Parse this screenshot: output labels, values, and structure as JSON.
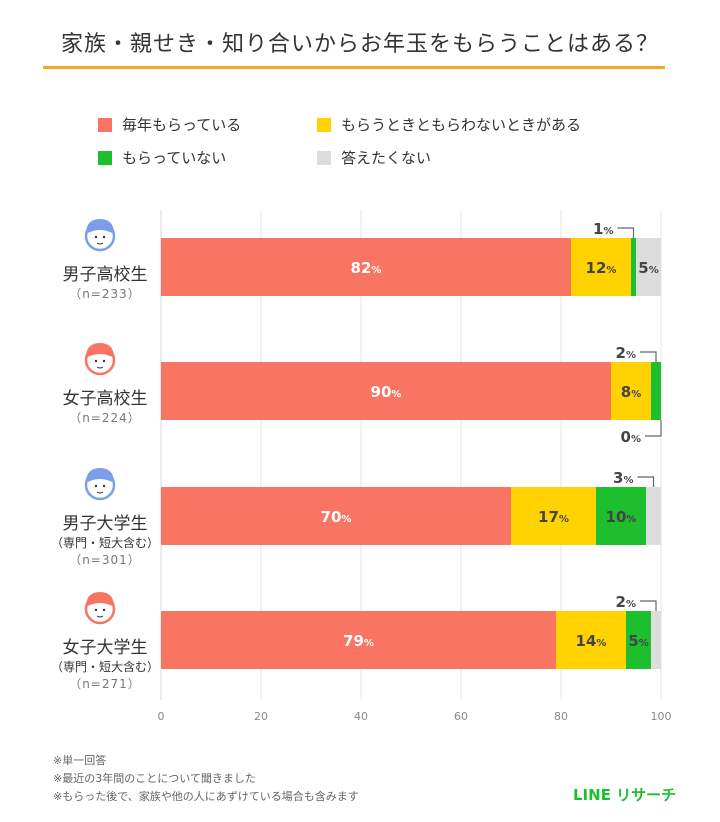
{
  "chart_data": {
    "type": "bar",
    "orientation": "horizontal",
    "stacked": true,
    "title": "家族・親せき・知り合いからお年玉をもらうことはある？",
    "categories": [
      {
        "name": "男子高校生",
        "sub": "",
        "n": "（n=233）"
      },
      {
        "name": "女子高校生",
        "sub": "",
        "n": "（n=224）"
      },
      {
        "name": "男子大学生",
        "sub": "（専門・短大含む）",
        "n": "（n=301）"
      },
      {
        "name": "女子大学生",
        "sub": "（専門・短大含む）",
        "n": "（n=271）"
      }
    ],
    "series": [
      {
        "name": "毎年もらっている",
        "color": "#F87564",
        "values": [
          82,
          90,
          70,
          79
        ]
      },
      {
        "name": "もらうときともらわないときがある",
        "color": "#FFD200",
        "values": [
          12,
          8,
          17,
          14
        ]
      },
      {
        "name": "もらっていない",
        "color": "#1DBF2E",
        "values": [
          1,
          2,
          10,
          5
        ]
      },
      {
        "name": "答えたくない",
        "color": "#DDDDDD",
        "values": [
          5,
          0,
          3,
          2
        ]
      }
    ],
    "xlim": [
      0,
      100
    ],
    "xticks": [
      "0",
      "20",
      "40",
      "60",
      "80",
      "100"
    ],
    "grid": true,
    "legend": "top",
    "unit": "%"
  },
  "notes": [
    "※単一回答",
    "※最近の3年間のことについて聞きました",
    "※もらった後で、家族や他の人にあずけている場合も含みます"
  ],
  "brand": "LINE リサーチ"
}
